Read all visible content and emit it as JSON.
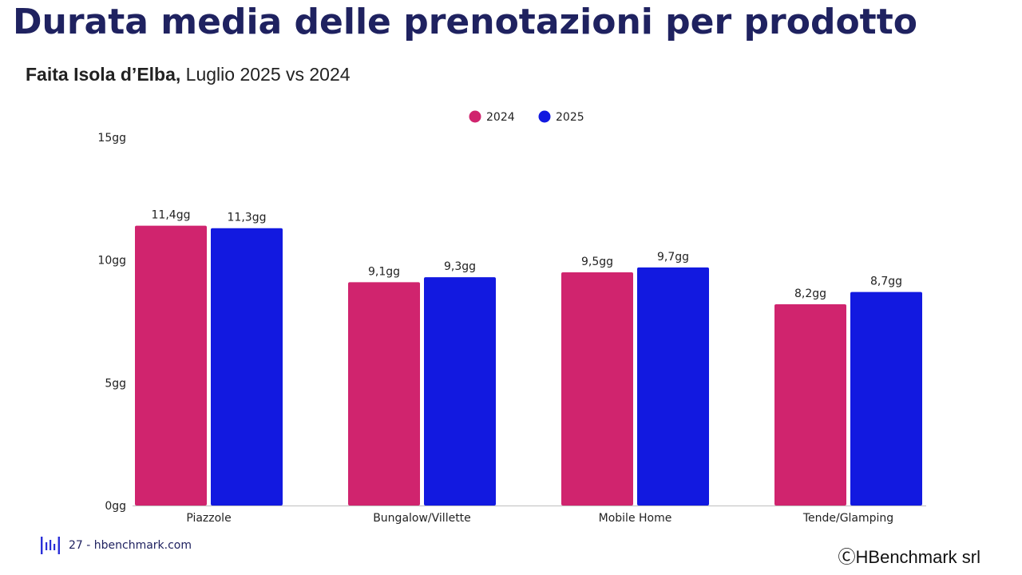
{
  "page": {
    "title": "Durata media delle prenotazioni per prodotto",
    "subtitle_bold": "Faita Isola d’Elba,",
    "subtitle_rest": " Luglio 2025 vs 2024",
    "footer_left": "27 - hbenchmark.com",
    "footer_right": "ⒸHBenchmark srl"
  },
  "colors": {
    "title": "#1f2260",
    "series_2024": "#d0246e",
    "series_2025": "#1219e0"
  },
  "chart_data": {
    "type": "bar",
    "categories": [
      "Piazzole",
      "Bungalow/Villette",
      "Mobile Home",
      "Tende/Glamping"
    ],
    "series": [
      {
        "name": "2024",
        "values": [
          11.4,
          9.1,
          9.5,
          8.2
        ],
        "labels": [
          "11,4gg",
          "9,1gg",
          "9,5gg",
          "8,2gg"
        ],
        "color": "#d0246e"
      },
      {
        "name": "2025",
        "values": [
          11.3,
          9.3,
          9.7,
          8.7
        ],
        "labels": [
          "11,3gg",
          "9,3gg",
          "9,7gg",
          "8,7gg"
        ],
        "color": "#1219e0"
      }
    ],
    "ylim": [
      0,
      15
    ],
    "yticks": [
      0,
      5,
      10,
      15
    ],
    "ytick_labels": [
      "0gg",
      "5gg",
      "10gg",
      "15gg"
    ],
    "grid": false,
    "legend_position": "top-center"
  }
}
